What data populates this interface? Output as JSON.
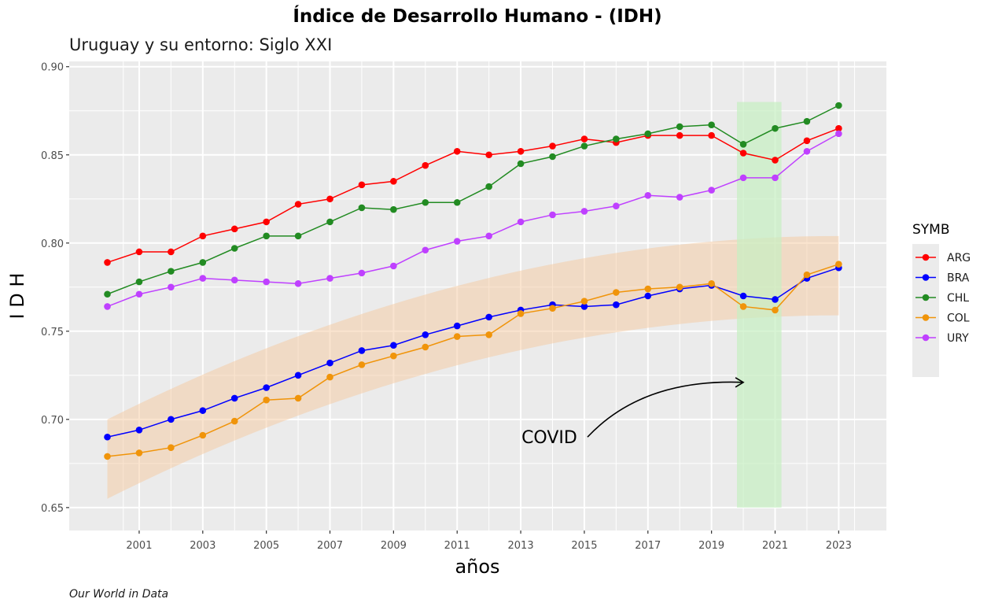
{
  "chart_data": {
    "type": "line",
    "title": "Índice de Desarrollo Humano - (IDH)",
    "subtitle": "Uruguay y su entorno: Siglo XXI",
    "xlabel": "años",
    "ylabel": "I D H",
    "caption": "Our World in Data",
    "xlim": [
      1998.8,
      2024.5
    ],
    "ylim": [
      0.637,
      0.903
    ],
    "x_ticks": [
      2001,
      2003,
      2005,
      2007,
      2009,
      2011,
      2013,
      2015,
      2017,
      2019,
      2021,
      2023
    ],
    "y_ticks": [
      0.65,
      0.7,
      0.75,
      0.8,
      0.85,
      0.9
    ],
    "y_tick_labels": [
      "0.65",
      "0.70",
      "0.75",
      "0.80",
      "0.85",
      "0.90"
    ],
    "grid": true,
    "legend": {
      "title": "SYMB",
      "position": "right"
    },
    "x": [
      2000,
      2001,
      2002,
      2003,
      2004,
      2005,
      2006,
      2007,
      2008,
      2009,
      2010,
      2011,
      2012,
      2013,
      2014,
      2015,
      2016,
      2017,
      2018,
      2019,
      2020,
      2021,
      2022,
      2023
    ],
    "series": [
      {
        "name": "ARG",
        "color": "#ff0000",
        "values": [
          0.789,
          0.795,
          0.795,
          0.804,
          0.808,
          0.812,
          0.822,
          0.825,
          0.833,
          0.835,
          0.844,
          0.852,
          0.85,
          0.852,
          0.855,
          0.859,
          0.857,
          0.861,
          0.861,
          0.861,
          0.851,
          0.847,
          0.858,
          0.865
        ]
      },
      {
        "name": "BRA",
        "color": "#0000ff",
        "values": [
          0.69,
          0.694,
          0.7,
          0.705,
          0.712,
          0.718,
          0.725,
          0.732,
          0.739,
          0.742,
          0.748,
          0.753,
          0.758,
          0.762,
          0.765,
          0.764,
          0.765,
          0.77,
          0.774,
          0.776,
          0.77,
          0.768,
          0.78,
          0.786
        ]
      },
      {
        "name": "CHL",
        "color": "#228b22",
        "values": [
          0.771,
          0.778,
          0.784,
          0.789,
          0.797,
          0.804,
          0.804,
          0.812,
          0.82,
          0.819,
          0.823,
          0.823,
          0.832,
          0.845,
          0.849,
          0.855,
          0.859,
          0.862,
          0.866,
          0.867,
          0.856,
          0.865,
          0.869,
          0.878
        ]
      },
      {
        "name": "COL",
        "color": "#f0940a",
        "values": [
          0.679,
          0.681,
          0.684,
          0.691,
          0.699,
          0.711,
          0.712,
          0.724,
          0.731,
          0.736,
          0.741,
          0.747,
          0.748,
          0.76,
          0.763,
          0.767,
          0.772,
          0.774,
          0.775,
          0.777,
          0.764,
          0.762,
          0.782,
          0.788
        ]
      },
      {
        "name": "URY",
        "color": "#bf40ff",
        "values": [
          0.764,
          0.771,
          0.775,
          0.78,
          0.779,
          0.778,
          0.777,
          0.78,
          0.783,
          0.787,
          0.796,
          0.801,
          0.804,
          0.812,
          0.816,
          0.818,
          0.821,
          0.827,
          0.826,
          0.83,
          0.837,
          0.837,
          0.852,
          0.862
        ]
      }
    ],
    "ribbon": {
      "color": "#f5c9a0",
      "x_range": [
        2000,
        2023
      ],
      "lower_start": 0.655,
      "lower_end": 0.759,
      "upper_start": 0.7,
      "upper_end": 0.804
    },
    "highlight_rect": {
      "color": "#c6f0c2",
      "x_range": [
        2019.8,
        2021.2
      ],
      "y_range": [
        0.65,
        0.88
      ]
    },
    "annotation": {
      "text": "COVID",
      "text_at": [
        2013.9,
        0.69
      ],
      "arrow_from": [
        2015.1,
        0.69
      ],
      "arrow_to": [
        2020.0,
        0.721
      ]
    }
  }
}
